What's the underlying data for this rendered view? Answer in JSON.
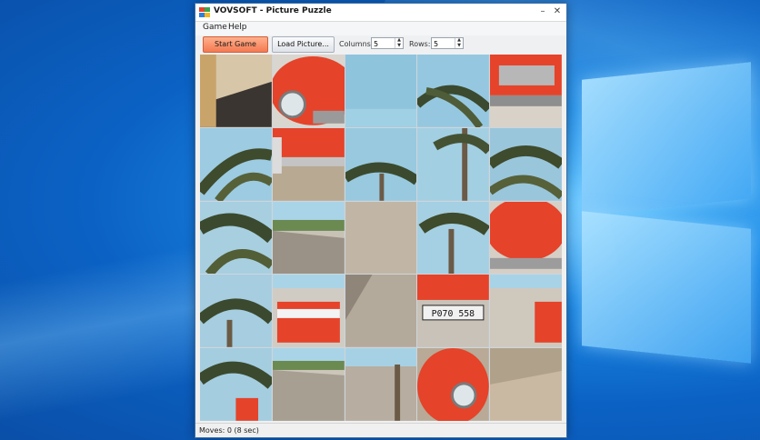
{
  "window": {
    "title": "VOVSOFT - Picture Puzzle",
    "minimize_icon": "minimize-icon",
    "close_icon": "close-icon"
  },
  "menu": {
    "items": [
      "Game",
      "Help"
    ]
  },
  "toolbar": {
    "start_label": "Start Game",
    "load_label": "Load Picture...",
    "columns_label": "Columns:",
    "columns_value": "5",
    "rows_label": "Rows:",
    "rows_value": "5"
  },
  "board": {
    "columns": 5,
    "rows": 5,
    "tiles": [
      "pavement-shadow",
      "car-headlight",
      "sky",
      "palm-fronds",
      "car-grille",
      "palm-tree",
      "car-bumper",
      "palm-crown",
      "palm-trunks",
      "palm-fronds-2",
      "palm-fronds-3",
      "road-grass",
      "sand",
      "palm-base",
      "car-grille-2",
      "palm-fronds-4",
      "red-convertible",
      "diagonal-road",
      "license-plate",
      "car-side",
      "palm-fronds-5",
      "beach-road",
      "path-shadow",
      "car-headlight-2",
      "pavement"
    ]
  },
  "status": {
    "text": "Moves: 0 (8 sec)"
  },
  "colors": {
    "accent": "#f47a52",
    "car_red": "#e5432a",
    "sky": "#8fc4dd"
  }
}
